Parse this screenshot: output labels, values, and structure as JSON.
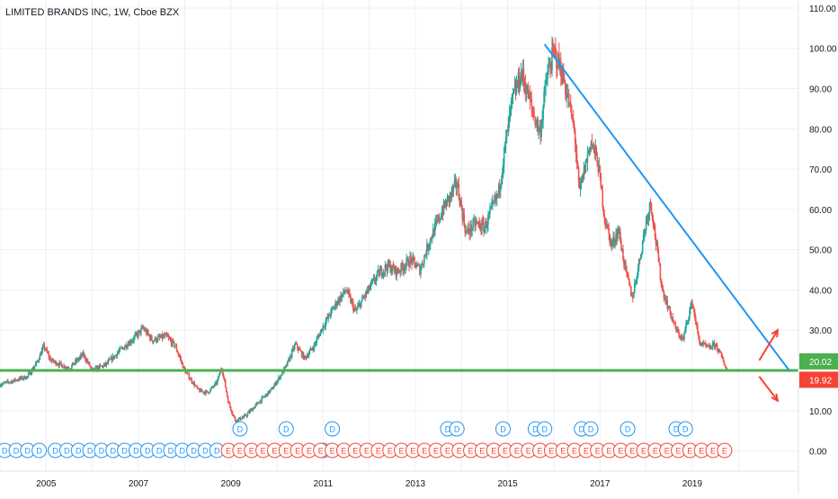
{
  "header": {
    "title": "LIMITED BRANDS INC, 1W, Cboe BZX"
  },
  "colors": {
    "up": "#26a69a",
    "down": "#ef5350",
    "support_line": "#4caf50",
    "trend_line": "#2196f3",
    "arrows": "#f44336",
    "grid": "#eef0f3",
    "axis_text": "#131722",
    "dividend_marker": "#2196f3",
    "earnings_marker": "#f44336"
  },
  "chart_data": {
    "type": "candlestick",
    "title": "LIMITED BRANDS INC, 1W, Cboe BZX",
    "xlabel": "",
    "ylabel": "",
    "x_range": [
      2004.0,
      2021.3
    ],
    "ylim": [
      -5,
      112
    ],
    "x_ticks": [
      {
        "value": 2005,
        "label": "2005"
      },
      {
        "value": 2007,
        "label": "2007"
      },
      {
        "value": 2009,
        "label": "2009"
      },
      {
        "value": 2011,
        "label": "2011"
      },
      {
        "value": 2013,
        "label": "2013"
      },
      {
        "value": 2015,
        "label": "2015"
      },
      {
        "value": 2017,
        "label": "2017"
      },
      {
        "value": 2019,
        "label": "2019"
      }
    ],
    "y_ticks": [
      {
        "value": 0,
        "label": "0.00"
      },
      {
        "value": 10,
        "label": "10.00"
      },
      {
        "value": 30,
        "label": "30.00"
      },
      {
        "value": 40,
        "label": "40.00"
      },
      {
        "value": 50,
        "label": "50.00"
      },
      {
        "value": 60,
        "label": "60.00"
      },
      {
        "value": 70,
        "label": "70.00"
      },
      {
        "value": 80,
        "label": "80.00"
      },
      {
        "value": 90,
        "label": "90.00"
      },
      {
        "value": 100,
        "label": "100.00"
      },
      {
        "value": 110,
        "label": "110.00"
      }
    ],
    "grid": true,
    "price_path": [
      [
        2004.0,
        16.5
      ],
      [
        2004.6,
        18.5
      ],
      [
        2004.8,
        22.0
      ],
      [
        2004.95,
        26.0
      ],
      [
        2005.1,
        22.5
      ],
      [
        2005.5,
        20.5
      ],
      [
        2005.8,
        24.0
      ],
      [
        2006.0,
        20.0
      ],
      [
        2006.3,
        21.5
      ],
      [
        2006.6,
        25.0
      ],
      [
        2006.9,
        28.0
      ],
      [
        2007.1,
        30.5
      ],
      [
        2007.3,
        27.5
      ],
      [
        2007.6,
        28.5
      ],
      [
        2007.8,
        26.0
      ],
      [
        2008.0,
        20.0
      ],
      [
        2008.3,
        15.0
      ],
      [
        2008.5,
        14.5
      ],
      [
        2008.7,
        17.0
      ],
      [
        2008.8,
        21.0
      ],
      [
        2008.95,
        12.0
      ],
      [
        2009.1,
        7.5
      ],
      [
        2009.3,
        8.5
      ],
      [
        2009.6,
        12.0
      ],
      [
        2009.9,
        15.5
      ],
      [
        2010.2,
        21.0
      ],
      [
        2010.4,
        26.5
      ],
      [
        2010.6,
        23.0
      ],
      [
        2010.8,
        26.0
      ],
      [
        2011.0,
        31.0
      ],
      [
        2011.3,
        37.0
      ],
      [
        2011.5,
        40.0
      ],
      [
        2011.7,
        34.5
      ],
      [
        2011.9,
        38.5
      ],
      [
        2012.2,
        44.0
      ],
      [
        2012.4,
        46.0
      ],
      [
        2012.6,
        44.5
      ],
      [
        2012.9,
        47.5
      ],
      [
        2013.1,
        45.0
      ],
      [
        2013.3,
        52.0
      ],
      [
        2013.6,
        60.0
      ],
      [
        2013.9,
        66.5
      ],
      [
        2014.1,
        54.0
      ],
      [
        2014.3,
        56.5
      ],
      [
        2014.5,
        55.5
      ],
      [
        2014.8,
        64.0
      ],
      [
        2014.95,
        76.0
      ],
      [
        2015.1,
        87.0
      ],
      [
        2015.3,
        94.0
      ],
      [
        2015.55,
        84.0
      ],
      [
        2015.7,
        79.0
      ],
      [
        2015.85,
        93.0
      ],
      [
        2016.0,
        99.0
      ],
      [
        2016.15,
        95.0
      ],
      [
        2016.3,
        88.0
      ],
      [
        2016.45,
        79.0
      ],
      [
        2016.55,
        64.0
      ],
      [
        2016.8,
        77.0
      ],
      [
        2016.95,
        72.0
      ],
      [
        2017.1,
        58.0
      ],
      [
        2017.25,
        51.0
      ],
      [
        2017.4,
        55.0
      ],
      [
        2017.55,
        45.0
      ],
      [
        2017.7,
        38.0
      ],
      [
        2017.85,
        47.0
      ],
      [
        2018.0,
        57.0
      ],
      [
        2018.1,
        62.0
      ],
      [
        2018.2,
        53.0
      ],
      [
        2018.35,
        40.0
      ],
      [
        2018.5,
        35.0
      ],
      [
        2018.65,
        30.0
      ],
      [
        2018.8,
        27.5
      ],
      [
        2018.9,
        33.0
      ],
      [
        2019.0,
        37.0
      ],
      [
        2019.15,
        27.0
      ],
      [
        2019.35,
        25.5
      ],
      [
        2019.5,
        26.5
      ],
      [
        2019.65,
        23.0
      ],
      [
        2019.75,
        19.92
      ]
    ],
    "support_line": {
      "y": 20.02,
      "x_start": 2004.0,
      "x_end": 2021.3
    },
    "trend_line": {
      "x1": 2015.8,
      "y1": 101.0,
      "x2": 2021.1,
      "y2": 20.0
    },
    "arrows": [
      {
        "direction": "up",
        "from": [
          2020.45,
          22.5
        ],
        "to": [
          2020.85,
          30.0
        ]
      },
      {
        "direction": "down",
        "from": [
          2020.45,
          18.5
        ],
        "to": [
          2020.85,
          12.5
        ]
      }
    ],
    "price_labels": [
      {
        "text": "20.02",
        "value": 20.02,
        "color": "#4caf50"
      },
      {
        "text": "19.92",
        "value": 19.92,
        "color": "#f44336"
      }
    ],
    "event_markers": {
      "dividend_upper": [
        2009.2,
        2010.2,
        2011.2,
        2013.7,
        2013.9,
        2014.9,
        2015.6,
        2015.8,
        2016.6,
        2016.8,
        2017.6,
        2018.65,
        2018.85
      ],
      "dividend_lower": [
        2004.1,
        2004.35,
        2004.6,
        2004.85,
        2005.2,
        2005.45,
        2005.7,
        2005.95,
        2006.2,
        2006.45,
        2006.7,
        2006.95,
        2007.2,
        2007.45,
        2007.7,
        2007.95,
        2008.2,
        2008.45,
        2008.7,
        2011.0
      ],
      "earnings_lower": [
        2008.95,
        2009.2,
        2009.45,
        2009.7,
        2009.95,
        2010.2,
        2010.45,
        2010.7,
        2010.95,
        2011.2,
        2011.45,
        2011.7,
        2011.95,
        2012.2,
        2012.45,
        2012.7,
        2012.95,
        2013.2,
        2013.45,
        2013.7,
        2013.95,
        2014.2,
        2014.45,
        2014.7,
        2014.95,
        2015.2,
        2015.45,
        2015.7,
        2015.95,
        2016.2,
        2016.45,
        2016.7,
        2016.95,
        2017.2,
        2017.45,
        2017.7,
        2017.95,
        2018.2,
        2018.45,
        2018.7,
        2018.95,
        2019.2,
        2019.45,
        2019.7
      ],
      "dividend_label": "D",
      "earnings_label": "E"
    }
  }
}
